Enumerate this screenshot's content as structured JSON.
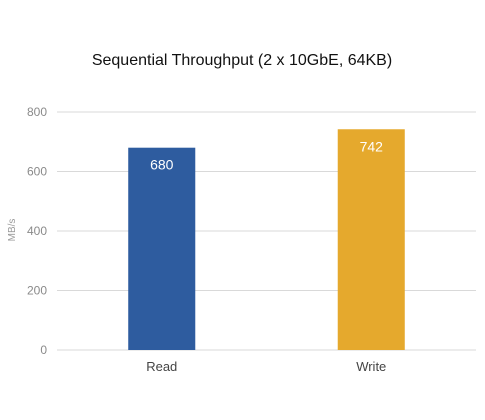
{
  "chart_data": {
    "type": "bar",
    "title": "Sequential Throughput (2 x 10GbE, 64KB)",
    "xlabel": "",
    "ylabel": "MB/s",
    "categories": [
      "Read",
      "Write"
    ],
    "values": [
      680,
      742
    ],
    "data_labels": [
      "680",
      "742"
    ],
    "colors": [
      "#2E5C9F",
      "#E5A92D"
    ],
    "ylim": [
      0,
      800
    ],
    "yticks": [
      0,
      200,
      400,
      600,
      800
    ],
    "ytick_labels": [
      "0",
      "200",
      "400",
      "600",
      "800"
    ],
    "grid": true,
    "legend": "none"
  }
}
